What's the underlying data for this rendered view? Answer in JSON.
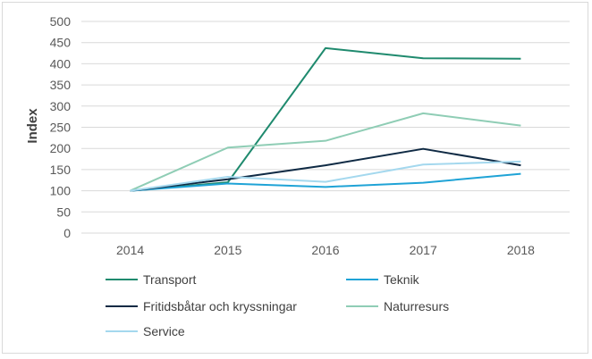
{
  "chart_data": {
    "type": "line",
    "title": "",
    "xlabel": "",
    "ylabel": "Index",
    "x": [
      "2014",
      "2015",
      "2016",
      "2017",
      "2018"
    ],
    "ylim": [
      0,
      500
    ],
    "yticks": [
      0,
      50,
      100,
      150,
      200,
      250,
      300,
      350,
      400,
      450,
      500
    ],
    "grid": true,
    "legend_position": "bottom",
    "series": [
      {
        "name": "Transport",
        "color": "#1f8a6e",
        "values": [
          100,
          120,
          437,
          413,
          412
        ]
      },
      {
        "name": "Teknik",
        "color": "#1fa3d6",
        "values": [
          100,
          117,
          109,
          119,
          140
        ]
      },
      {
        "name": "Fritidsbåtar och kryssningar",
        "color": "#0f2a44",
        "values": [
          100,
          127,
          160,
          199,
          160
        ]
      },
      {
        "name": "Naturresurs",
        "color": "#8fcdb5",
        "values": [
          100,
          202,
          218,
          283,
          254
        ]
      },
      {
        "name": "Service",
        "color": "#a4d8ee",
        "values": [
          100,
          133,
          121,
          162,
          169
        ]
      }
    ]
  }
}
